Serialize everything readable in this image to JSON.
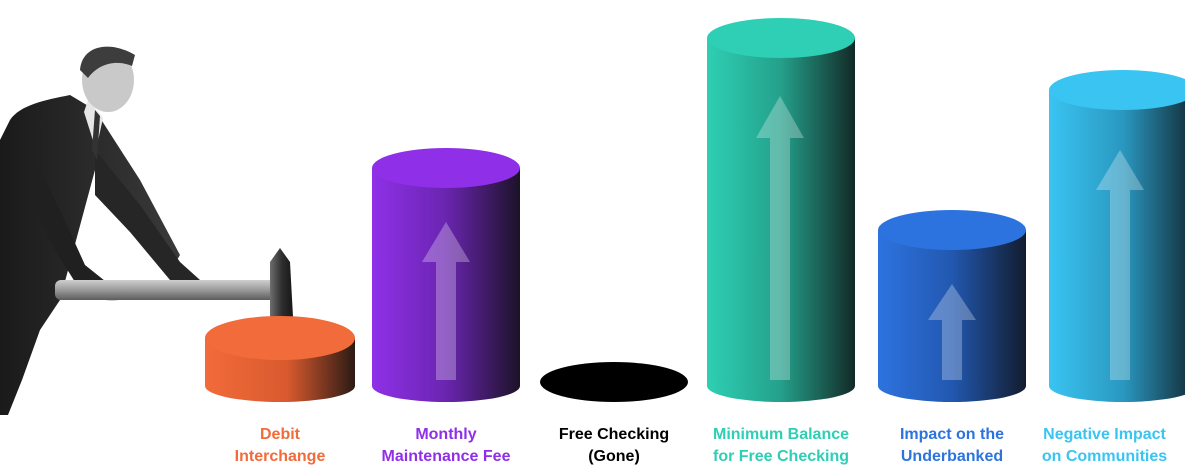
{
  "colors": {
    "debit": "#f26b3a",
    "monthly": "#8f30e8",
    "free_checking": "#000000",
    "minimum_balance": "#2ecfb4",
    "underbanked": "#2d73e0",
    "communities": "#3ac4f2"
  },
  "illustration": "man-swinging-sledgehammer-photo",
  "items": [
    {
      "label": "Debit\nInterchange",
      "color": "#f26b3a",
      "arrow": "none",
      "trend": "smashed-down"
    },
    {
      "label": "Monthly\nMaintenance Fee",
      "color": "#8f30e8",
      "arrow": "up",
      "trend": "up"
    },
    {
      "label": "Free Checking\n(Gone)",
      "color": "#000000",
      "arrow": "none",
      "trend": "gone"
    },
    {
      "label": "Minimum Balance\nfor Free Checking",
      "color": "#2ecfb4",
      "arrow": "up",
      "trend": "up"
    },
    {
      "label": "Impact on the\nUnderbanked",
      "color": "#2d73e0",
      "arrow": "up",
      "trend": "up"
    },
    {
      "label": "Negative Impact\non Communities",
      "color": "#3ac4f2",
      "arrow": "up",
      "trend": "up"
    }
  ]
}
